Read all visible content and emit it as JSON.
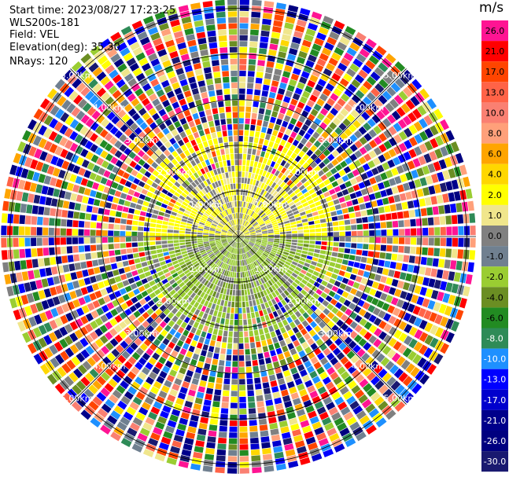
{
  "header": {
    "start_time": "Start time: 2023/08/27 17:23:25",
    "instrument": "WLS200s-181",
    "field": "Field: VEL",
    "elevation": "Elevation(deg): 35.30",
    "nrays": "NRays: 120"
  },
  "colorbar": {
    "unit": "m/s",
    "ticks": [
      "26.0",
      "21.0",
      "17.0",
      "13.0",
      "10.0",
      "8.0",
      "6.0",
      "4.0",
      "2.0",
      "1.0",
      "0.0",
      "-1.0",
      "-2.0",
      "-4.0",
      "-6.0",
      "-8.0",
      "-10.0",
      "-13.0",
      "-17.0",
      "-21.0",
      "-26.0",
      "-30.0"
    ],
    "colors": [
      "#ff1493",
      "#ff0000",
      "#ff4500",
      "#ff6347",
      "#fa8072",
      "#ffa07a",
      "#ffa500",
      "#ffd700",
      "#ffff00",
      "#f0e68c",
      "#808080",
      "#708090",
      "#9acd32",
      "#6b8e23",
      "#228b22",
      "#2e8b57",
      "#1e90ff",
      "#0000ff",
      "#0000cd",
      "#00008b",
      "#000080",
      "#191970"
    ]
  },
  "chart_data": {
    "type": "heatmap",
    "subtype": "polar PPI scan",
    "field": "VEL",
    "units": "m/s",
    "nrays": 120,
    "elevation_deg": 35.3,
    "range_rings_km": [
      1.0,
      2.0,
      3.0,
      4.0,
      5.0
    ],
    "ring_labels": [
      "1.00km",
      "2.00km",
      "3.00km",
      "4.00km",
      "5.00km"
    ],
    "max_range_km": 5.2,
    "gate_count": 40,
    "pattern": {
      "near_north_half": "yellow/gray (0 to 2 m/s)",
      "near_south_half": "yellow-green/gray (-2 to 0 m/s)",
      "far_field": "noise across full color range"
    }
  }
}
